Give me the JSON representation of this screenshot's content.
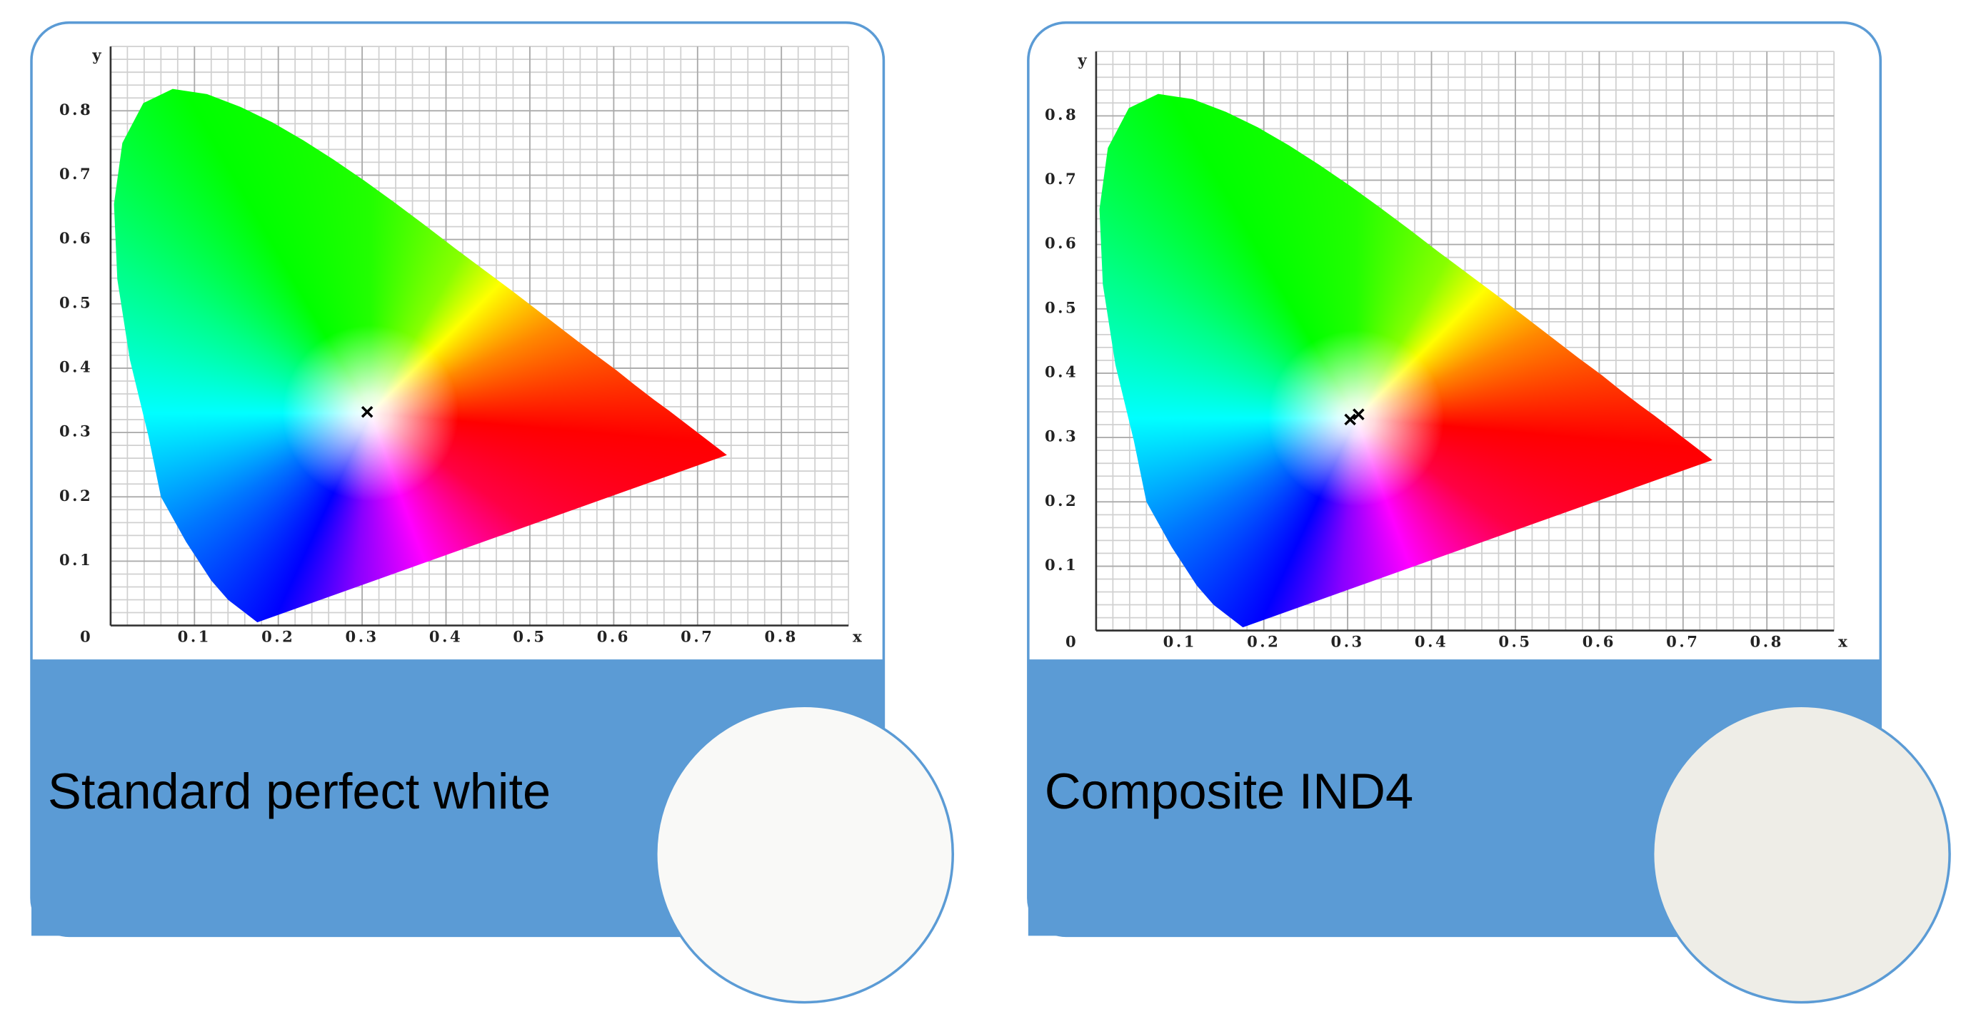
{
  "chart_data": [
    {
      "type": "scatter",
      "caption": "Standard perfect white",
      "x_label": "x",
      "y_label": "y",
      "xlim": [
        0,
        0.88
      ],
      "ylim": [
        0,
        0.9
      ],
      "xticks": [
        0.1,
        0.2,
        0.3,
        0.4,
        0.5,
        0.6,
        0.7,
        0.8
      ],
      "yticks": [
        0,
        0.1,
        0.2,
        0.3,
        0.4,
        0.5,
        0.6,
        0.7,
        0.8
      ],
      "series": [
        {
          "color": "#000000",
          "x": [
            0.306
          ],
          "values": [
            0.332
          ]
        }
      ],
      "swatch_color": "#f9f9f7"
    },
    {
      "type": "scatter",
      "caption": "Composite IND4",
      "x_label": "x",
      "y_label": "y",
      "xlim": [
        0,
        0.88
      ],
      "ylim": [
        0,
        0.9
      ],
      "xticks": [
        0.1,
        0.2,
        0.3,
        0.4,
        0.5,
        0.6,
        0.7,
        0.8
      ],
      "yticks": [
        0,
        0.1,
        0.2,
        0.3,
        0.4,
        0.5,
        0.6,
        0.7,
        0.8
      ],
      "series": [
        {
          "color": "#000000",
          "x": [
            0.303,
            0.313
          ],
          "values": [
            0.328,
            0.336
          ]
        }
      ],
      "swatch_color": "#eeede7"
    }
  ]
}
